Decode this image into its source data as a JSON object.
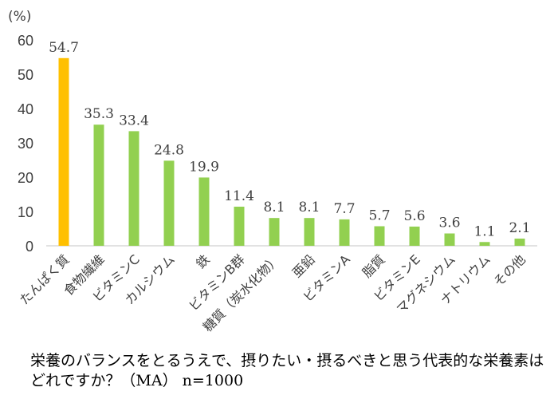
{
  "chart_data": {
    "type": "bar",
    "ylabel": "(%)",
    "ylim": [
      0,
      60
    ],
    "yticks": [
      0,
      10,
      20,
      30,
      40,
      50,
      60
    ],
    "grid": false,
    "categories": [
      "たんぱく質",
      "食物繊維",
      "ビタミンC",
      "カルシウム",
      "鉄",
      "ビタミンB群",
      "糖質（炭水化物）",
      "亜鉛",
      "ビタミンA",
      "脂質",
      "ビタミンE",
      "マグネシウム",
      "ナトリウム",
      "その他"
    ],
    "values": [
      54.7,
      35.3,
      33.4,
      24.8,
      19.9,
      11.4,
      8.1,
      8.1,
      7.7,
      5.7,
      5.6,
      3.6,
      1.1,
      2.1
    ],
    "data_labels": [
      "54.7",
      "35.3",
      "33.4",
      "24.8",
      "19.9",
      "11.4",
      "8.1",
      "8.1",
      "7.7",
      "5.7",
      "5.6",
      "3.6",
      "1.1",
      "2.1"
    ],
    "colors": {
      "highlight": "#FFC000",
      "default": "#92D050",
      "axis": "#D9D9D9",
      "text": "#404040"
    },
    "highlight_index": 0
  },
  "caption": "栄養のバランスをとるうえで、摂りたい・摂るべきと思う代表的な栄養素はどれですか？（MA） n=1000"
}
